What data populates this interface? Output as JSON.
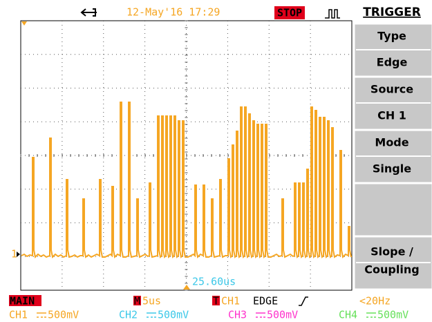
{
  "top_bar": {
    "datetime": "12-May'16 17:29",
    "status": "STOP"
  },
  "menu": {
    "title": "TRIGGER",
    "buttons": [
      {
        "label": "Type",
        "value": "Edge"
      },
      {
        "label": "Source",
        "value": "CH 1"
      },
      {
        "label": "Mode",
        "value": "Single"
      },
      {
        "label": "",
        "value": ""
      },
      {
        "label": "Slope /",
        "value": "Coupling"
      }
    ]
  },
  "screen": {
    "cursor_time": "25.60us",
    "channel_marker": "1"
  },
  "status_row": {
    "mode": "MAIN",
    "timebase_tag": "M",
    "timebase": "5us",
    "trigger_tag": "T",
    "trigger_source": "CH1",
    "trigger_type": "EDGE",
    "frequency": "<20Hz"
  },
  "channels": [
    {
      "name": "CH1",
      "scale": "500mV"
    },
    {
      "name": "CH2",
      "scale": "500mV"
    },
    {
      "name": "CH3",
      "scale": "500mV"
    },
    {
      "name": "CH4",
      "scale": "500mV"
    }
  ]
}
